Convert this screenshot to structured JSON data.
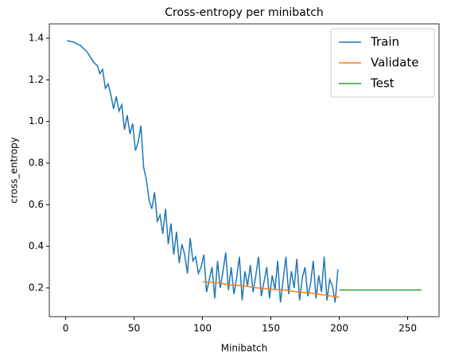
{
  "chart_data": {
    "type": "line",
    "title": "Cross-entropy per minibatch",
    "x_label": "Minibatch",
    "y_label": "cross_entropy",
    "xlim": [
      -11.95,
      272.95
    ],
    "ylim": [
      0.062,
      1.469
    ],
    "xticks": [
      0,
      50,
      100,
      150,
      200,
      250
    ],
    "yticks": [
      0.2,
      0.4,
      0.6,
      0.8,
      {
        "value": 1,
        "label": "1.0"
      },
      1.2,
      1.4
    ],
    "legend": "upper right",
    "series": [
      {
        "name": "Train",
        "color": "#1f77b4",
        "x": [
          1,
          3,
          5,
          7,
          9,
          11,
          13,
          15,
          17,
          19,
          21,
          23,
          25,
          27,
          29,
          31,
          33,
          35,
          37,
          39,
          41,
          43,
          45,
          47,
          49,
          51,
          53,
          55,
          57,
          59,
          61,
          63,
          65,
          67,
          69,
          71,
          73,
          75,
          77,
          79,
          81,
          83,
          85,
          87,
          89,
          91,
          93,
          95,
          97,
          99,
          101,
          103,
          105,
          107,
          109,
          111,
          113,
          115,
          117,
          119,
          121,
          123,
          125,
          127,
          129,
          131,
          133,
          135,
          137,
          139,
          141,
          143,
          145,
          147,
          149,
          151,
          153,
          155,
          157,
          159,
          161,
          163,
          165,
          167,
          169,
          171,
          173,
          175,
          177,
          179,
          181,
          183,
          185,
          187,
          189,
          191,
          193,
          195,
          197,
          199
        ],
        "values": [
          1.39,
          1.385,
          1.383,
          1.378,
          1.37,
          1.365,
          1.35,
          1.34,
          1.32,
          1.3,
          1.28,
          1.27,
          1.23,
          1.25,
          1.16,
          1.18,
          1.13,
          1.06,
          1.12,
          1.05,
          1.08,
          0.96,
          1.03,
          0.94,
          0.99,
          0.86,
          0.9,
          0.98,
          0.78,
          0.72,
          0.62,
          0.58,
          0.66,
          0.52,
          0.55,
          0.46,
          0.58,
          0.41,
          0.51,
          0.36,
          0.47,
          0.32,
          0.41,
          0.36,
          0.27,
          0.44,
          0.33,
          0.35,
          0.27,
          0.3,
          0.36,
          0.18,
          0.24,
          0.3,
          0.15,
          0.33,
          0.2,
          0.28,
          0.37,
          0.19,
          0.3,
          0.17,
          0.25,
          0.35,
          0.14,
          0.28,
          0.21,
          0.31,
          0.18,
          0.26,
          0.35,
          0.16,
          0.23,
          0.3,
          0.15,
          0.26,
          0.19,
          0.33,
          0.13,
          0.24,
          0.35,
          0.17,
          0.28,
          0.2,
          0.34,
          0.14,
          0.25,
          0.3,
          0.16,
          0.22,
          0.33,
          0.15,
          0.26,
          0.18,
          0.35,
          0.14,
          0.24,
          0.21,
          0.13,
          0.29
        ]
      },
      {
        "name": "Validate",
        "color": "#ff7f0e",
        "x": [
          100,
          110,
          120,
          130,
          140,
          150,
          160,
          170,
          180,
          190,
          200
        ],
        "values": [
          0.23,
          0.225,
          0.215,
          0.21,
          0.2,
          0.195,
          0.19,
          0.18,
          0.175,
          0.165,
          0.155
        ]
      },
      {
        "name": "Test",
        "color": "#2ca02c",
        "x": [
          200,
          260
        ],
        "values": [
          0.19,
          0.19
        ]
      }
    ]
  }
}
